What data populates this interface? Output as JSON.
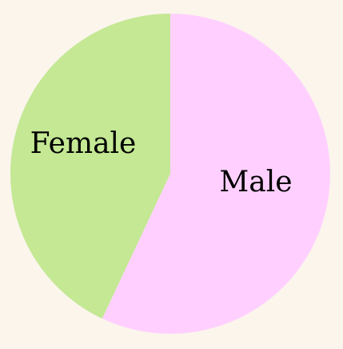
{
  "chart_data": {
    "type": "pie",
    "title": "",
    "legend": "none",
    "slices": [
      {
        "label": "Male",
        "value": 57,
        "color": "#ffd0ff"
      },
      {
        "label": "Female",
        "value": 43,
        "color": "#c4e894"
      }
    ],
    "start_angle": "top",
    "direction": "clockwise"
  },
  "background_color": "#fbf5ec"
}
